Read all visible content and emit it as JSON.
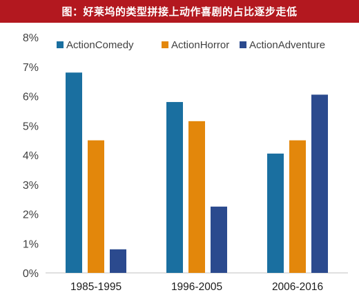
{
  "title": "图：好莱坞的类型拼接上动作喜剧的占比逐步走低",
  "chart_data": {
    "type": "bar",
    "categories": [
      "1985-1995",
      "1996-2005",
      "2006-2016"
    ],
    "series": [
      {
        "name": "ActionComedy",
        "values": [
          6.8,
          5.8,
          4.05
        ],
        "color": "#1a6fa0"
      },
      {
        "name": "ActionHorror",
        "values": [
          4.5,
          5.15,
          4.5
        ],
        "color": "#e3870b"
      },
      {
        "name": "ActionAdventure",
        "values": [
          0.8,
          2.25,
          6.05
        ],
        "color": "#2b4a8e"
      }
    ],
    "yticks": [
      "0%",
      "1%",
      "2%",
      "3%",
      "4%",
      "5%",
      "6%",
      "7%",
      "8%"
    ],
    "ylim": [
      0,
      8
    ],
    "grid": false,
    "legend_position": "top"
  }
}
